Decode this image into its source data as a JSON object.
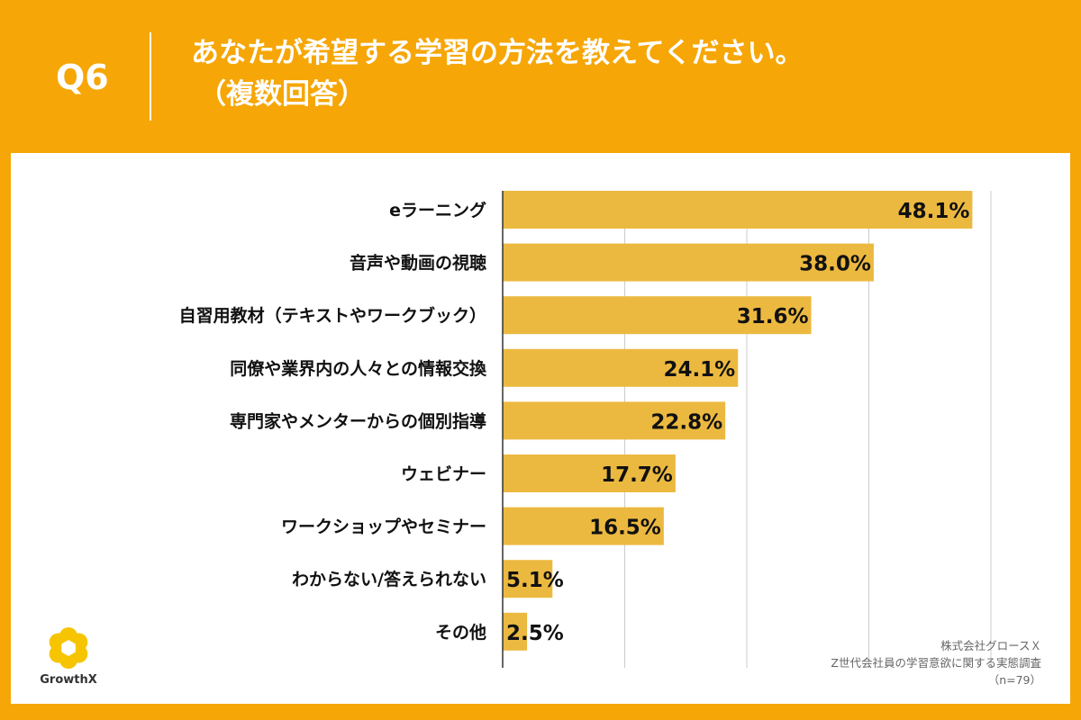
{
  "header": {
    "question_no": "Q6",
    "title": "あなたが希望する学習の方法を教えてください。",
    "subtitle": "（複数回答）"
  },
  "colors": {
    "background": "#f6a606",
    "bar": "#ecb940",
    "grid": "#cccccc",
    "axis": "#333333",
    "text": "#111111"
  },
  "chart_data": {
    "type": "bar",
    "orientation": "horizontal",
    "categories": [
      "eラーニング",
      "音声や動画の視聴",
      "自習用教材（テキストやワークブック）",
      "同僚や業界内の人々との情報交換",
      "専門家やメンターからの個別指導",
      "ウェビナー",
      "ワークショップやセミナー",
      "わからない/答えられない",
      "その他"
    ],
    "values": [
      48.1,
      38.0,
      31.6,
      24.1,
      22.8,
      17.7,
      16.5,
      5.1,
      2.5
    ],
    "value_labels": [
      "48.1%",
      "38.0%",
      "31.6%",
      "24.1%",
      "22.8%",
      "17.7%",
      "16.5%",
      "5.1%",
      "2.5%"
    ],
    "xlim": [
      0,
      50
    ],
    "grid_step": 12.5,
    "grid": true,
    "title": "",
    "xlabel": "",
    "ylabel": ""
  },
  "logo": {
    "text": "GrowthX"
  },
  "source": {
    "company": "株式会社グロースＸ",
    "survey": "Z世代会社員の学習意欲に関する実態調査",
    "sample": "（n=79）"
  }
}
